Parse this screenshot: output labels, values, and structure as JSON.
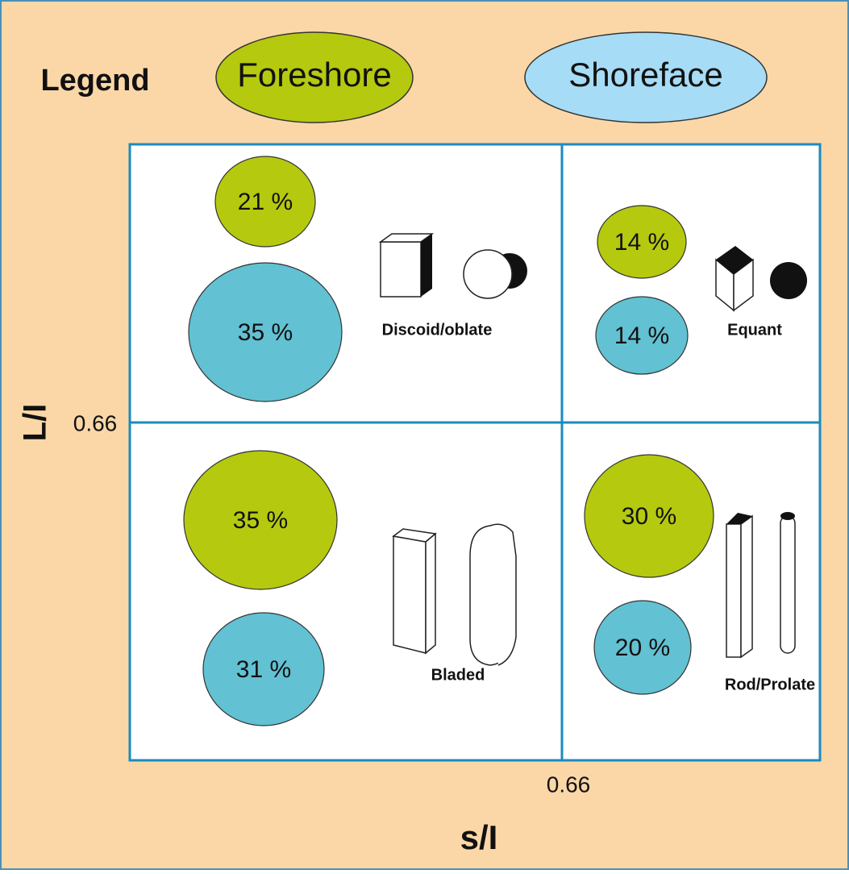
{
  "legend": {
    "title": "Legend",
    "items": [
      "Foreshore",
      "Shoreface"
    ]
  },
  "axes": {
    "y_label": "L/I",
    "y_tick": "0.66",
    "x_tick": "0.66",
    "x_label": "s/I"
  },
  "quadrants": [
    {
      "label": "Discoid/oblate",
      "foreshore": "21 %",
      "shoreface": "35 %"
    },
    {
      "label": "Equant",
      "foreshore": "14 %",
      "shoreface": "14 %"
    },
    {
      "label": "Bladed",
      "foreshore": "35 %",
      "shoreface": "31 %"
    },
    {
      "label": "Rod/Prolate",
      "foreshore": "30 %",
      "shoreface": "20 %"
    }
  ]
}
